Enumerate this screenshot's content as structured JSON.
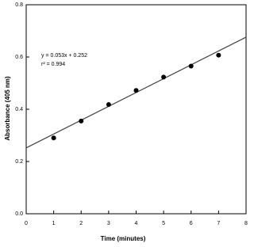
{
  "chart_data": {
    "type": "scatter",
    "x_label": "Time (minutes)",
    "y_label": "Absorbance (405 nm)",
    "annotations": [
      "y = 0.053x + 0.252",
      "r² = 0.994"
    ],
    "x": [
      1,
      2,
      3,
      4,
      5,
      6,
      7
    ],
    "series": [
      {
        "color": "#000000",
        "values": [
          0.29,
          0.355,
          0.418,
          0.472,
          0.523,
          0.565,
          0.607
        ]
      }
    ],
    "fit_line": {
      "x": [
        0,
        8
      ],
      "values": [
        0.252,
        0.676
      ],
      "color": "#444444"
    },
    "xlim": [
      0,
      8
    ],
    "xticks": [
      0,
      1,
      2,
      3,
      4,
      5,
      6,
      7,
      8
    ],
    "ylim": [
      0,
      0.8
    ],
    "yticks": [
      {
        "value": 0,
        "label": "0.0"
      },
      0.2,
      0.4,
      0.6,
      0.8
    ],
    "grid": false
  }
}
